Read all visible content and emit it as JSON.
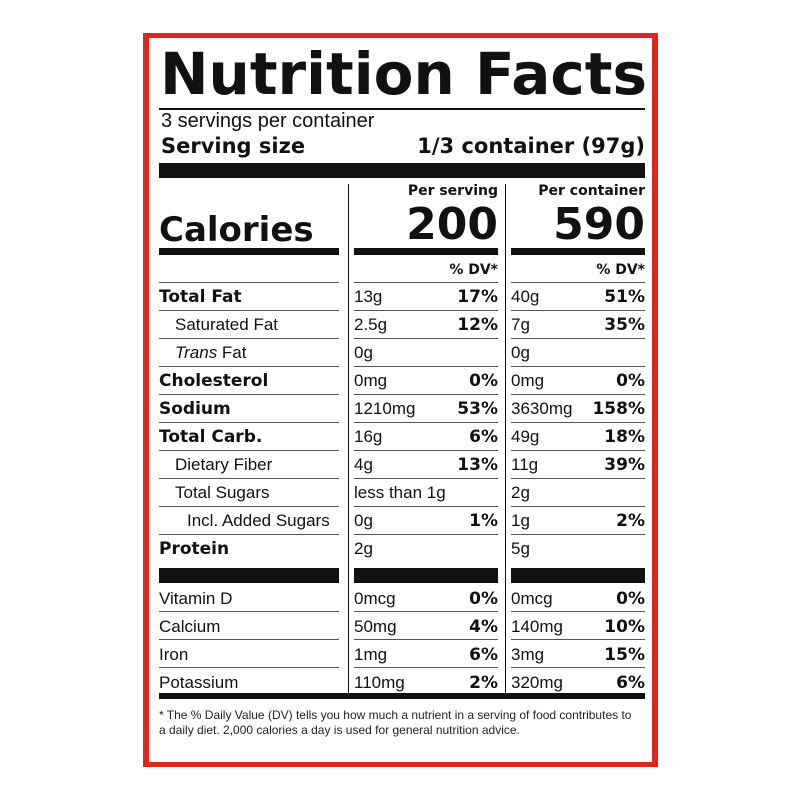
{
  "title": "Nutrition Facts",
  "servings_per_container": "3 servings per container",
  "serving_size": {
    "label": "Serving size",
    "value": "1/3 container (97g)"
  },
  "columns": {
    "per_serving": "Per serving",
    "per_container": "Per container"
  },
  "calories": {
    "label": "Calories",
    "per_serving": "200",
    "per_container": "590"
  },
  "dv_header": "% DV*",
  "nutrients": [
    {
      "label": "Total Fat",
      "bold": true,
      "indent": 0,
      "serving_amount": "13g",
      "serving_dv": "17%",
      "container_amount": "40g",
      "container_dv": "51%"
    },
    {
      "label": "Saturated Fat",
      "bold": false,
      "indent": 1,
      "serving_amount": "2.5g",
      "serving_dv": "12%",
      "container_amount": "7g",
      "container_dv": "35%"
    },
    {
      "label_italic": "Trans",
      "label": " Fat",
      "bold": false,
      "indent": 1,
      "serving_amount": "0g",
      "serving_dv": "",
      "container_amount": "0g",
      "container_dv": ""
    },
    {
      "label": "Cholesterol",
      "bold": true,
      "indent": 0,
      "serving_amount": "0mg",
      "serving_dv": "0%",
      "container_amount": "0mg",
      "container_dv": "0%"
    },
    {
      "label": "Sodium",
      "bold": true,
      "indent": 0,
      "serving_amount": "1210mg",
      "serving_dv": "53%",
      "container_amount": "3630mg",
      "container_dv": "158%"
    },
    {
      "label": "Total Carb.",
      "bold": true,
      "indent": 0,
      "serving_amount": "16g",
      "serving_dv": "6%",
      "container_amount": "49g",
      "container_dv": "18%"
    },
    {
      "label": "Dietary Fiber",
      "bold": false,
      "indent": 1,
      "serving_amount": "4g",
      "serving_dv": "13%",
      "container_amount": "11g",
      "container_dv": "39%"
    },
    {
      "label": "Total Sugars",
      "bold": false,
      "indent": 1,
      "serving_amount": "less than 1g",
      "serving_dv": "",
      "container_amount": "2g",
      "container_dv": ""
    },
    {
      "label": "Incl. Added Sugars",
      "bold": false,
      "indent": 2,
      "serving_amount": "0g",
      "serving_dv": "1%",
      "container_amount": "1g",
      "container_dv": "2%"
    },
    {
      "label": "Protein",
      "bold": true,
      "indent": 0,
      "serving_amount": "2g",
      "serving_dv": "",
      "container_amount": "5g",
      "container_dv": ""
    }
  ],
  "vitamins": [
    {
      "label": "Vitamin D",
      "serving_amount": "0mcg",
      "serving_dv": "0%",
      "container_amount": "0mcg",
      "container_dv": "0%"
    },
    {
      "label": "Calcium",
      "serving_amount": "50mg",
      "serving_dv": "4%",
      "container_amount": "140mg",
      "container_dv": "10%"
    },
    {
      "label": "Iron",
      "serving_amount": "1mg",
      "serving_dv": "6%",
      "container_amount": "3mg",
      "container_dv": "15%"
    },
    {
      "label": "Potassium",
      "serving_amount": "110mg",
      "serving_dv": "2%",
      "container_amount": "320mg",
      "container_dv": "6%"
    }
  ],
  "footnote": "* The % Daily Value (DV) tells you how much a nutrient in a serving of food contributes to a daily diet. 2,000 calories a day is used for general nutrition advice.",
  "colors": {
    "border": "#e0261c",
    "ink": "#111111",
    "background": "#ffffff"
  }
}
